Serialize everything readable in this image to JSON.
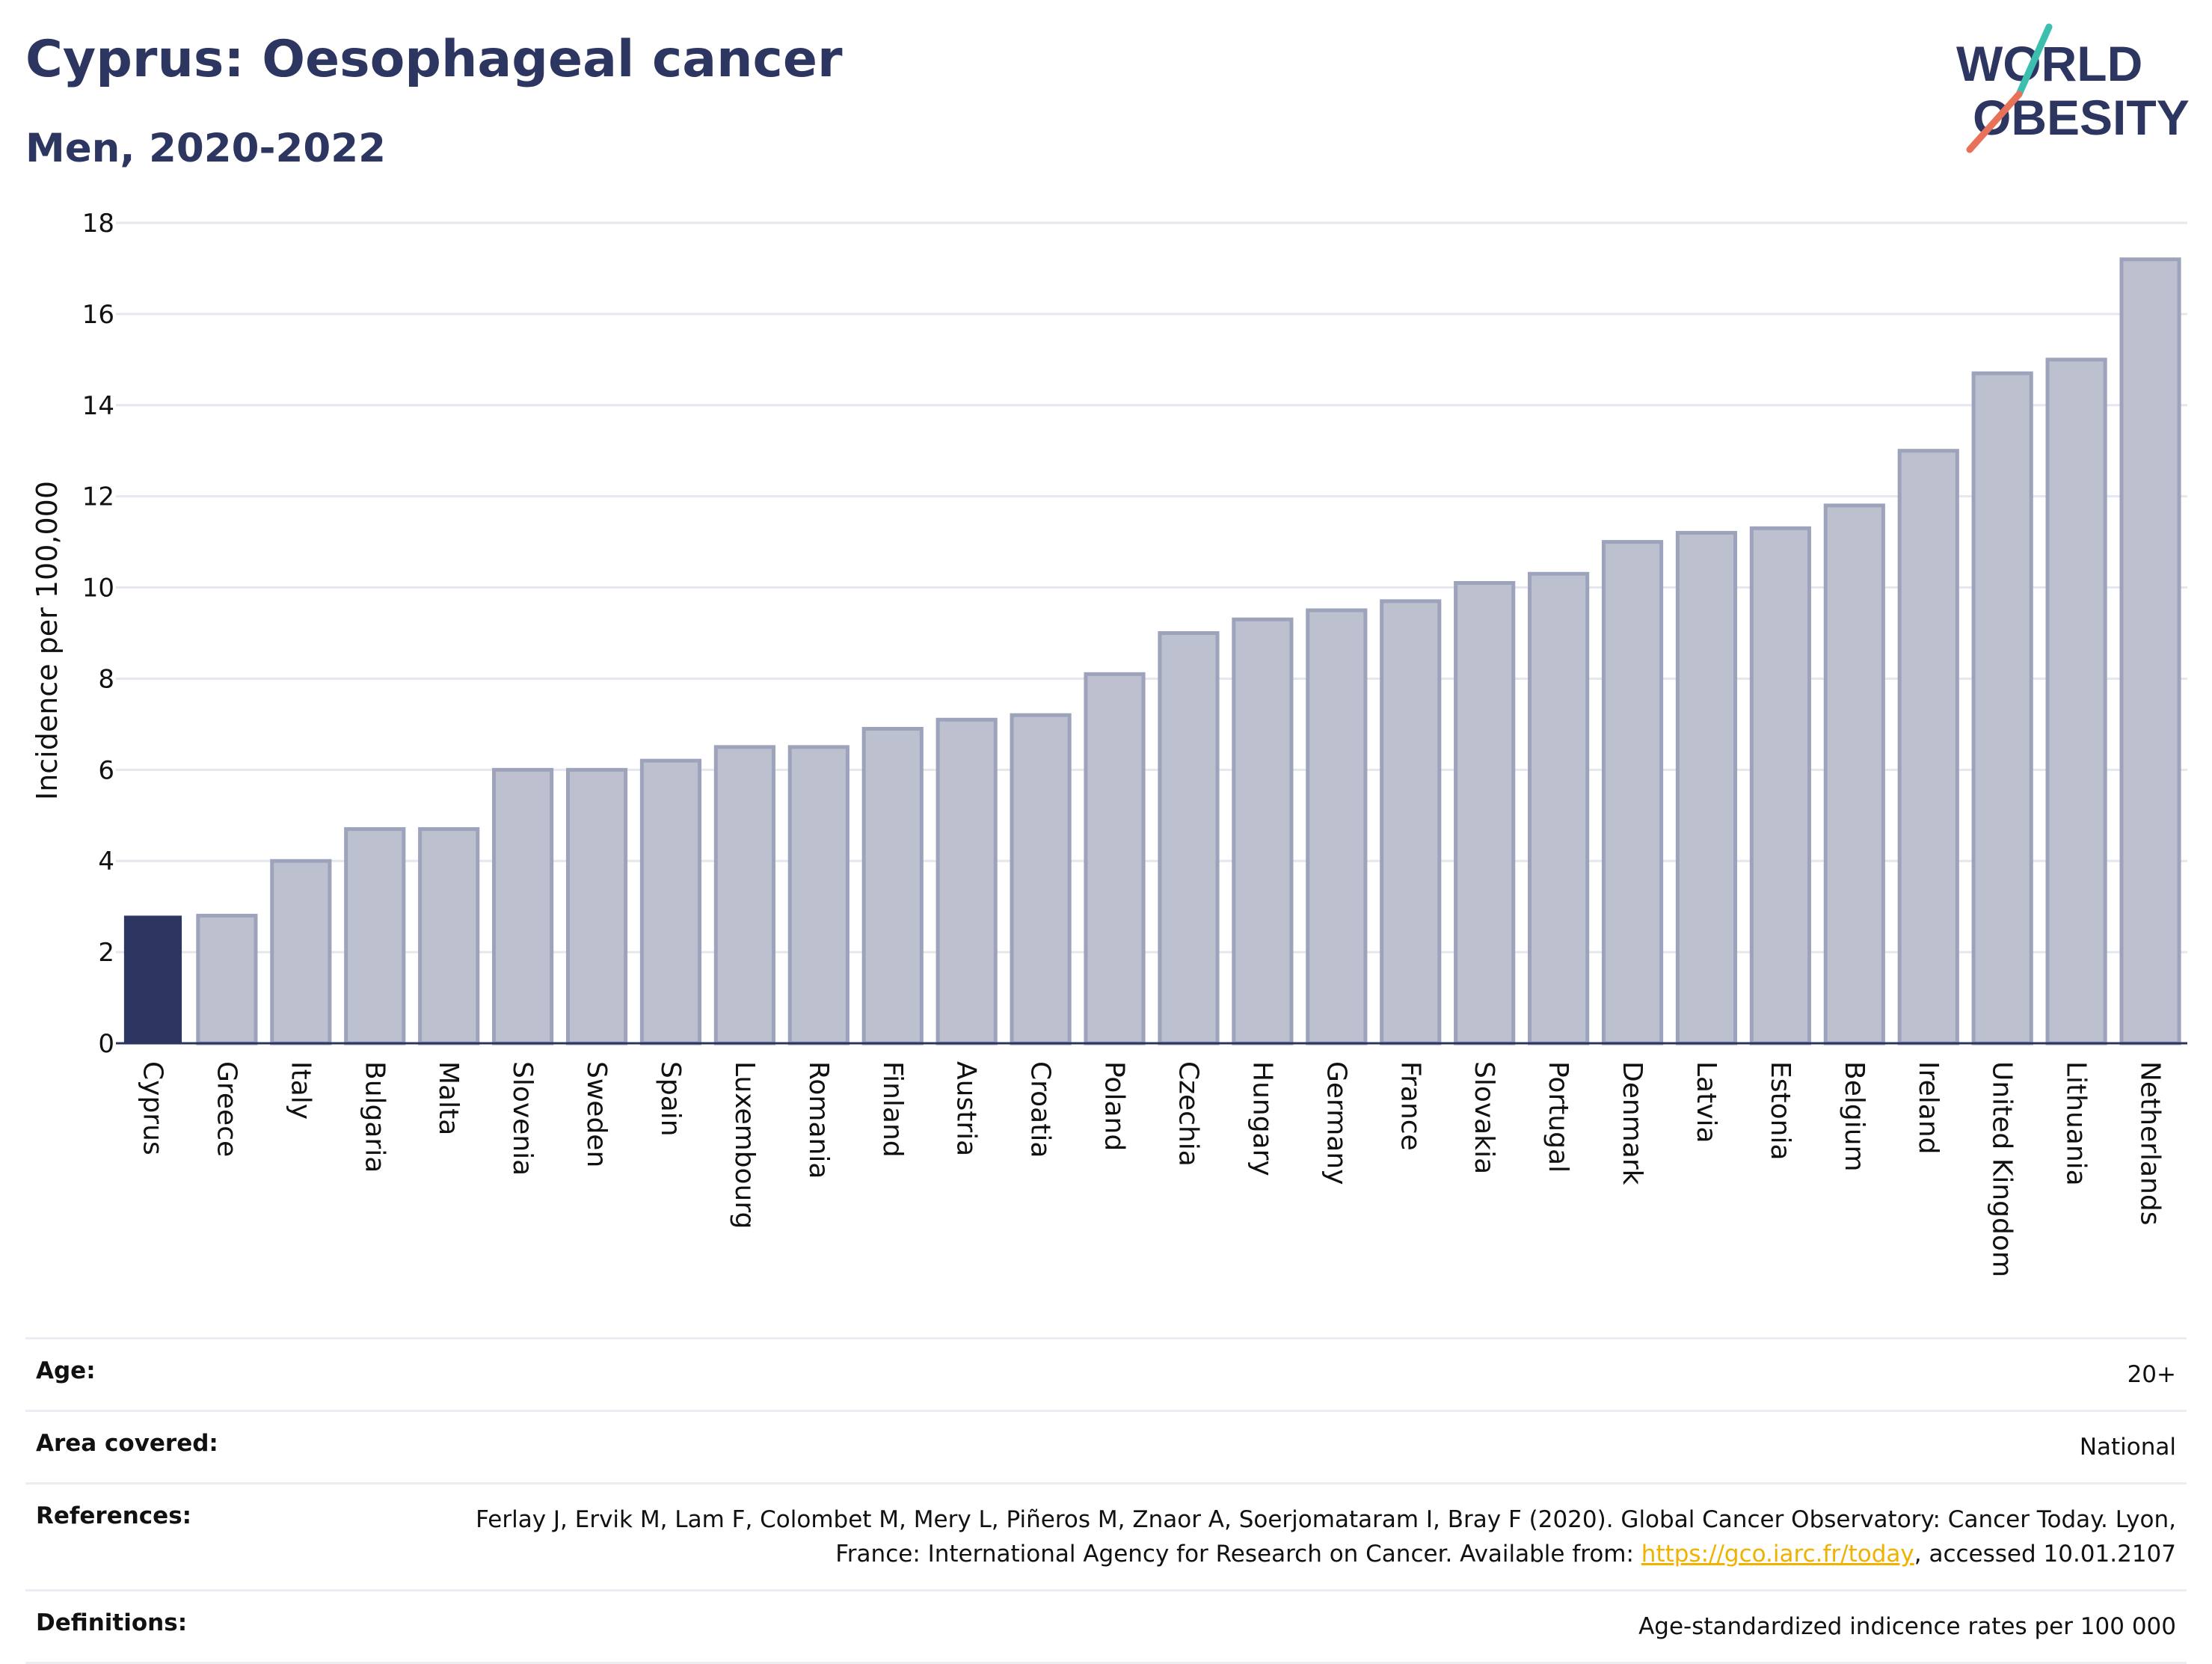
{
  "header": {
    "title": "Cyprus: Oesophageal cancer",
    "subtitle": "Men, 2020-2022",
    "logo_line1": "WORLD",
    "logo_line2": "OBESITY"
  },
  "colors": {
    "highlight_bar": "#2d3561",
    "other_bar": "#bdc0ce",
    "other_bar_border": "#9ea3bc",
    "gridline": "#e6e6ee",
    "logo_text": "#2d3561",
    "logo_slash_top": "#3dbfb0",
    "logo_slash_bottom": "#e8715a",
    "link": "#f0b100"
  },
  "chart_data": {
    "type": "bar",
    "ylabel": "Incidence per 100,000",
    "xlabel": "",
    "ylim": [
      0,
      18
    ],
    "yticks": [
      0,
      2,
      4,
      6,
      8,
      10,
      12,
      14,
      16,
      18
    ],
    "grid": true,
    "highlight": "Cyprus",
    "categories": [
      "Cyprus",
      "Greece",
      "Italy",
      "Bulgaria",
      "Malta",
      "Slovenia",
      "Sweden",
      "Spain",
      "Luxembourg",
      "Romania",
      "Finland",
      "Austria",
      "Croatia",
      "Poland",
      "Czechia",
      "Hungary",
      "Germany",
      "France",
      "Slovakia",
      "Portugal",
      "Denmark",
      "Latvia",
      "Estonia",
      "Belgium",
      "Ireland",
      "United Kingdom",
      "Lithuania",
      "Netherlands"
    ],
    "values": [
      2.8,
      2.8,
      4.0,
      4.7,
      4.7,
      6.0,
      6.0,
      6.2,
      6.5,
      6.5,
      6.9,
      7.1,
      7.2,
      8.1,
      9.0,
      9.3,
      9.5,
      9.7,
      10.1,
      10.3,
      11.0,
      11.2,
      11.3,
      11.8,
      13.0,
      14.7,
      15.0,
      17.2
    ]
  },
  "meta": {
    "age_label": "Age:",
    "age_value": "20+",
    "area_label": "Area covered:",
    "area_value": "National",
    "references_label": "References:",
    "references_text_1": "Ferlay J, Ervik M, Lam F, Colombet M, Mery L, Piñeros M, Znaor A, Soerjomataram I, Bray F (2020). Global Cancer Observatory: Cancer Today. Lyon, France: International Agency for Research on Cancer. Available from: ",
    "references_link": "https://gco.iarc.fr/today",
    "references_text_2": ", accessed 10.01.2107",
    "definitions_label": "Definitions:",
    "definitions_value": "Age-standardized indicence rates per 100 000"
  }
}
